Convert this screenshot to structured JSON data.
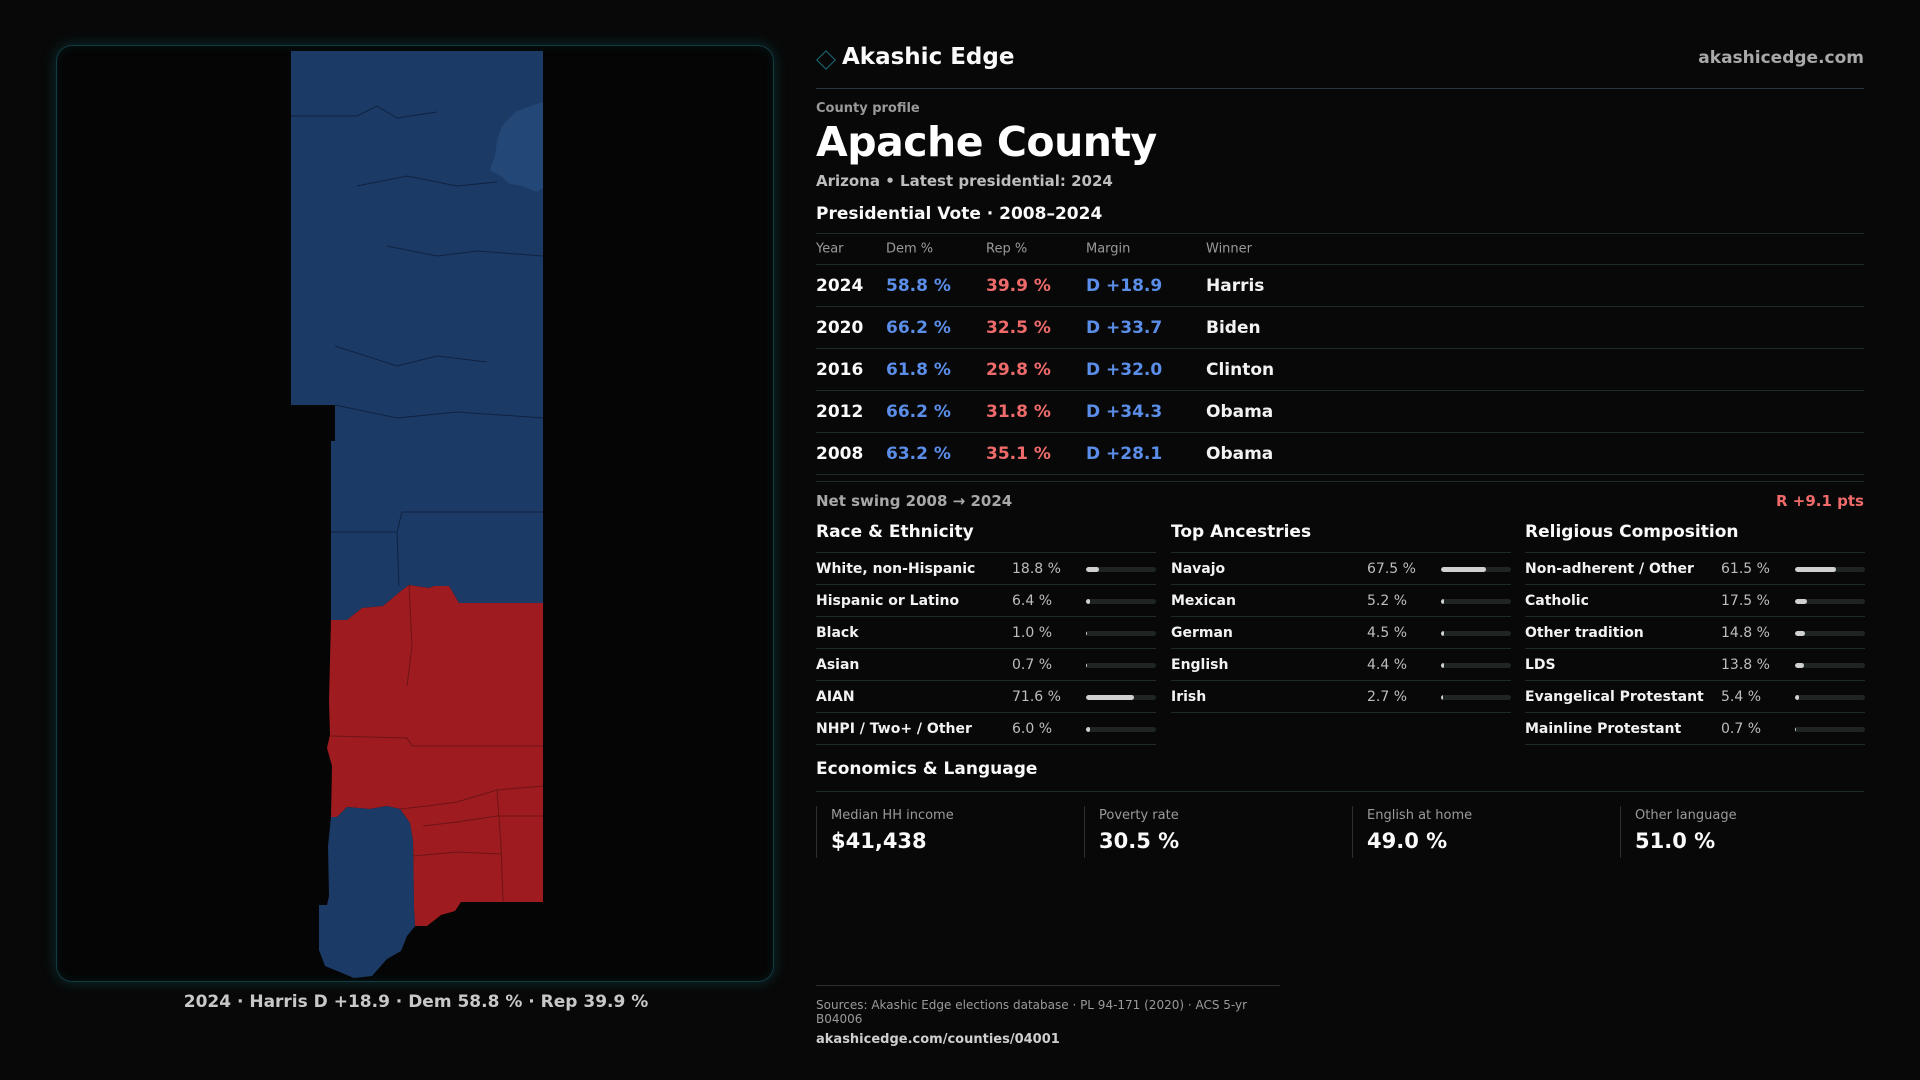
{
  "header": {
    "brand": "Akashic Edge",
    "site": "akashicedge.com"
  },
  "profile": {
    "kicker": "County profile",
    "county": "Apache County",
    "subtitle": "Arizona • Latest presidential: 2024"
  },
  "vote": {
    "title": "Presidential Vote · 2008–2024",
    "headers": {
      "year": "Year",
      "dem": "Dem %",
      "rep": "Rep %",
      "margin": "Margin",
      "winner": "Winner"
    },
    "rows": [
      {
        "year": "2024",
        "dem": "58.8 %",
        "rep": "39.9 %",
        "margin": "D +18.9",
        "winner": "Harris"
      },
      {
        "year": "2020",
        "dem": "66.2 %",
        "rep": "32.5 %",
        "margin": "D +33.7",
        "winner": "Biden"
      },
      {
        "year": "2016",
        "dem": "61.8 %",
        "rep": "29.8 %",
        "margin": "D +32.0",
        "winner": "Clinton"
      },
      {
        "year": "2012",
        "dem": "66.2 %",
        "rep": "31.8 %",
        "margin": "D +34.3",
        "winner": "Obama"
      },
      {
        "year": "2008",
        "dem": "63.2 %",
        "rep": "35.1 %",
        "margin": "D +28.1",
        "winner": "Obama"
      }
    ],
    "swing_label": "Net swing 2008 → 2024",
    "swing_value": "R +9.1 pts"
  },
  "race": {
    "title": "Race & Ethnicity",
    "items": [
      {
        "label": "White, non-Hispanic",
        "pct": "18.8 %",
        "value": 18.8
      },
      {
        "label": "Hispanic or Latino",
        "pct": "6.4 %",
        "value": 6.4
      },
      {
        "label": "Black",
        "pct": "1.0 %",
        "value": 1.0
      },
      {
        "label": "Asian",
        "pct": "0.7 %",
        "value": 0.7
      },
      {
        "label": "AIAN",
        "pct": "71.6 %",
        "value": 71.6
      },
      {
        "label": "NHPI / Two+ / Other",
        "pct": "6.0 %",
        "value": 6.0
      }
    ]
  },
  "ancestry": {
    "title": "Top Ancestries",
    "items": [
      {
        "label": "Navajo",
        "pct": "67.5 %",
        "value": 67.5
      },
      {
        "label": "Mexican",
        "pct": "5.2 %",
        "value": 5.2
      },
      {
        "label": "German",
        "pct": "4.5 %",
        "value": 4.5
      },
      {
        "label": "English",
        "pct": "4.4 %",
        "value": 4.4
      },
      {
        "label": "Irish",
        "pct": "2.7 %",
        "value": 2.7
      }
    ]
  },
  "religion": {
    "title": "Religious Composition",
    "items": [
      {
        "label": "Non-adherent / Other",
        "pct": "61.5 %",
        "value": 61.5
      },
      {
        "label": "Catholic",
        "pct": "17.5 %",
        "value": 17.5
      },
      {
        "label": "Other tradition",
        "pct": "14.8 %",
        "value": 14.8
      },
      {
        "label": "LDS",
        "pct": "13.8 %",
        "value": 13.8
      },
      {
        "label": "Evangelical Protestant",
        "pct": "5.4 %",
        "value": 5.4
      },
      {
        "label": "Mainline Protestant",
        "pct": "0.7 %",
        "value": 0.7
      }
    ]
  },
  "economics": {
    "title": "Economics & Language",
    "items": [
      {
        "label": "Median HH income",
        "value": "$41,438"
      },
      {
        "label": "Poverty rate",
        "value": "30.5 %"
      },
      {
        "label": "English at home",
        "value": "49.0 %"
      },
      {
        "label": "Other language",
        "value": "51.0 %"
      }
    ]
  },
  "map": {
    "caption": "2024 · Harris D +18.9 · Dem 58.8 % · Rep 39.9 %",
    "colors": {
      "dem": "#1c3a66",
      "rep": "#9e1c1f"
    }
  },
  "sources": {
    "text": "Sources: Akashic Edge elections database · PL 94-171 (2020) · ACS 5-yr B04006",
    "url": "akashicedge.com/counties/04001"
  }
}
